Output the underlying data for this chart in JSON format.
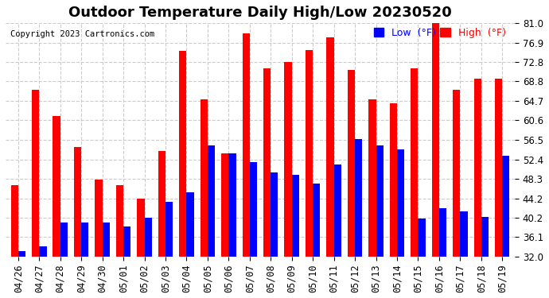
{
  "title": "Outdoor Temperature Daily High/Low 20230520",
  "copyright": "Copyright 2023 Cartronics.com",
  "legend_low": "Low  (°F)",
  "legend_high": "High  (°F)",
  "low_color": "blue",
  "high_color": "red",
  "background_color": "#ffffff",
  "grid_color": "#cccccc",
  "ylim": [
    32.0,
    81.0
  ],
  "yticks": [
    32.0,
    36.1,
    40.2,
    44.2,
    48.3,
    52.4,
    56.5,
    60.6,
    64.7,
    68.8,
    72.8,
    76.9,
    81.0
  ],
  "categories": [
    "04/26",
    "04/27",
    "04/28",
    "04/29",
    "04/30",
    "05/01",
    "05/02",
    "05/03",
    "05/04",
    "05/05",
    "05/06",
    "05/07",
    "05/08",
    "05/09",
    "05/10",
    "05/11",
    "05/12",
    "05/13",
    "05/14",
    "05/15",
    "05/16",
    "05/17",
    "05/18",
    "05/19"
  ],
  "highs": [
    46.9,
    67.1,
    61.5,
    55.0,
    48.2,
    46.9,
    44.2,
    54.1,
    75.2,
    65.0,
    53.6,
    78.8,
    71.6,
    72.8,
    75.4,
    78.1,
    71.2,
    65.0,
    64.2,
    71.6,
    81.0,
    67.1,
    69.3,
    69.3
  ],
  "lows": [
    33.1,
    34.2,
    39.2,
    39.2,
    39.2,
    38.3,
    40.1,
    43.4,
    45.4,
    55.4,
    53.6,
    51.8,
    49.6,
    49.1,
    47.3,
    51.3,
    56.7,
    55.4,
    54.5,
    39.9,
    42.1,
    41.4,
    40.3,
    53.2
  ],
  "bar_width": 0.35,
  "title_fontsize": 13,
  "tick_fontsize": 8.5
}
